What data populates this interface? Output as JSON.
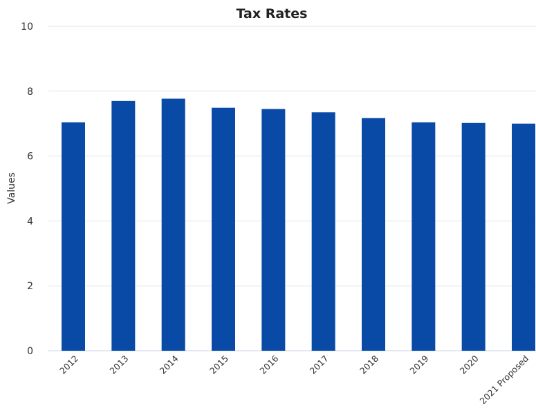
{
  "chart_data": {
    "type": "bar",
    "title": "Tax Rates",
    "xlabel": "",
    "ylabel": "Values",
    "categories": [
      "2012",
      "2013",
      "2014",
      "2015",
      "2016",
      "2017",
      "2018",
      "2019",
      "2020",
      "2021 Proposed"
    ],
    "values": [
      7.04,
      7.7,
      7.77,
      7.49,
      7.45,
      7.35,
      7.17,
      7.04,
      7.02,
      7.0
    ],
    "ylim": [
      0,
      10
    ],
    "yticks": [
      0,
      2,
      4,
      6,
      8,
      10
    ],
    "grid": true,
    "legend": "none",
    "colors": {
      "bar": "#0a4aa7",
      "grid": "#e3e3e3"
    }
  }
}
